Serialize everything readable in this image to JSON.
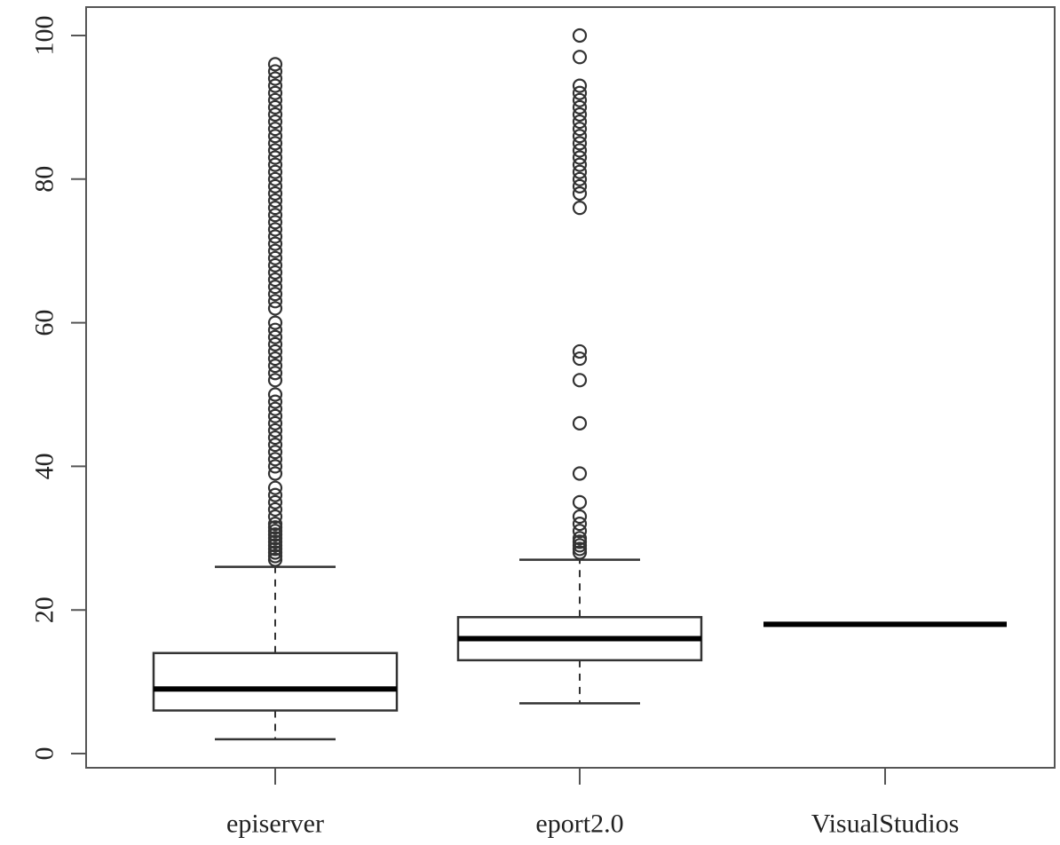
{
  "chart_data": {
    "type": "boxplot",
    "title": "",
    "xlabel": "",
    "ylabel": "",
    "ylim": [
      0,
      100
    ],
    "y_ticks": [
      0,
      20,
      40,
      60,
      80,
      100
    ],
    "grid": false,
    "categories": [
      "episerver",
      "eport2.0",
      "VisualStudios"
    ],
    "boxes": [
      {
        "category": "episerver",
        "whisker_low": 2,
        "q1": 6,
        "median": 9,
        "q3": 14,
        "whisker_high": 26,
        "outliers": [
          27,
          27.5,
          28,
          28.5,
          29,
          29.5,
          30,
          30.5,
          31,
          31.5,
          32,
          33,
          34,
          35,
          36,
          37,
          39,
          40,
          41,
          42,
          43,
          44,
          45,
          46,
          47,
          48,
          49,
          50,
          52,
          53,
          54,
          55,
          56,
          57,
          58,
          59,
          60,
          62,
          63,
          64,
          65,
          66,
          67,
          68,
          69,
          70,
          71,
          72,
          73,
          74,
          75,
          76,
          77,
          78,
          79,
          80,
          81,
          82,
          83,
          84,
          85,
          86,
          87,
          88,
          89,
          90,
          91,
          92,
          93,
          94,
          95,
          96
        ]
      },
      {
        "category": "eport2.0",
        "whisker_low": 7,
        "q1": 13,
        "median": 16,
        "q3": 19,
        "whisker_high": 27,
        "outliers": [
          28,
          28.5,
          29,
          29.5,
          30,
          31,
          32,
          33,
          35,
          39,
          46,
          52,
          55,
          56,
          76,
          78,
          79,
          80,
          81,
          82,
          83,
          84,
          85,
          86,
          87,
          88,
          89,
          90,
          91,
          92,
          93,
          97,
          100
        ]
      },
      {
        "category": "VisualStudios",
        "whisker_low": 18,
        "q1": 18,
        "median": 18,
        "q3": 18,
        "whisker_high": 18,
        "outliers": []
      }
    ]
  }
}
